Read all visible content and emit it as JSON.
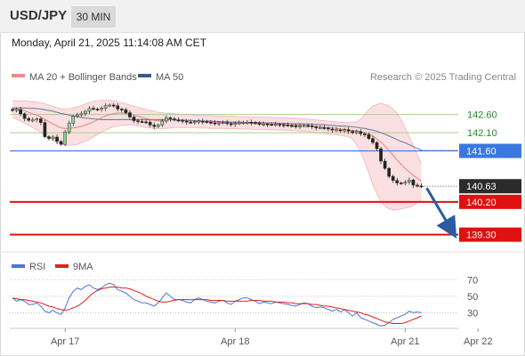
{
  "header": {
    "symbol": "USD/JPY",
    "timeframe": "30 MIN"
  },
  "datetime": "Monday, April 21, 2025 11:14:08 AM CET",
  "legend": [
    {
      "label": "MA 20 + Bollinger Bands",
      "color": "#f08a8a"
    },
    {
      "label": "MA 50",
      "color": "#3a5a8c"
    }
  ],
  "credit": "Research © 2025 Trading Central",
  "rsi_legend": [
    {
      "label": "RSI",
      "color": "#4f74d6"
    },
    {
      "label": "9MA",
      "color": "#e02020"
    }
  ],
  "chart_data": [
    {
      "type": "candlestick",
      "title": "USD/JPY",
      "ylim": [
        138.9,
        143.3
      ],
      "x_ticks": [
        {
          "label": "Apr 17",
          "i": 13
        },
        {
          "label": "Apr 18",
          "i": 55
        },
        {
          "label": "Apr 21",
          "i": 97
        },
        {
          "label": "Apr 22",
          "i": 115
        }
      ],
      "levels": [
        {
          "value": 142.6,
          "label": "142.60",
          "kind": "resistance",
          "color": "#a8d088",
          "text_color": "#2a8a2a"
        },
        {
          "value": 142.1,
          "label": "142.10",
          "kind": "resistance",
          "color": "#a8d088",
          "text_color": "#2a8a2a"
        },
        {
          "value": 141.6,
          "label": "141.60",
          "kind": "pivot",
          "color": "#3a78e0"
        },
        {
          "value": 140.63,
          "label": "140.63",
          "kind": "last-price",
          "color": "#222222"
        },
        {
          "value": 140.2,
          "label": "140.20",
          "kind": "support",
          "color": "#e01010"
        },
        {
          "value": 139.3,
          "label": "139.30",
          "kind": "support",
          "color": "#e01010"
        }
      ],
      "close": [
        142.71,
        142.74,
        142.62,
        142.49,
        142.44,
        142.45,
        142.48,
        142.38,
        141.99,
        141.94,
        141.98,
        141.86,
        141.78,
        142.12,
        142.36,
        142.55,
        142.59,
        142.62,
        142.69,
        142.77,
        142.75,
        142.74,
        142.77,
        142.84,
        142.86,
        142.84,
        142.75,
        142.73,
        142.65,
        142.53,
        142.43,
        142.41,
        142.4,
        142.39,
        142.31,
        142.27,
        142.31,
        142.42,
        142.51,
        142.48,
        142.45,
        142.44,
        142.42,
        142.39,
        142.38,
        142.4,
        142.42,
        142.41,
        142.39,
        142.37,
        142.36,
        142.37,
        142.38,
        142.35,
        142.33,
        142.36,
        142.37,
        142.39,
        142.39,
        142.38,
        142.36,
        142.33,
        142.34,
        142.33,
        142.32,
        142.33,
        142.32,
        142.31,
        142.3,
        142.29,
        142.28,
        142.29,
        142.3,
        142.29,
        142.26,
        142.24,
        142.24,
        142.23,
        142.2,
        142.17,
        142.18,
        142.16,
        142.18,
        142.14,
        142.1,
        142.13,
        142.07,
        142.05,
        141.94,
        141.83,
        141.66,
        141.32,
        141.12,
        140.9,
        140.79,
        140.72,
        140.71,
        140.74,
        140.8,
        140.66,
        140.64,
        140.63
      ],
      "ma20": [
        142.76,
        142.75,
        142.73,
        142.7,
        142.66,
        142.62,
        142.58,
        142.53,
        142.47,
        142.4,
        142.34,
        142.28,
        142.23,
        142.22,
        142.22,
        142.23,
        142.25,
        142.27,
        142.31,
        142.35,
        142.4,
        142.46,
        142.51,
        142.56,
        142.6,
        142.62,
        142.64,
        142.64,
        142.63,
        142.61,
        142.58,
        142.55,
        142.52,
        142.49,
        142.46,
        142.44,
        142.43,
        142.43,
        142.44,
        142.45,
        142.45,
        142.45,
        142.44,
        142.43,
        142.42,
        142.41,
        142.41,
        142.4,
        142.4,
        142.39,
        142.39,
        142.38,
        142.38,
        142.37,
        142.37,
        142.37,
        142.36,
        142.36,
        142.36,
        142.36,
        142.35,
        142.35,
        142.35,
        142.35,
        142.34,
        142.34,
        142.34,
        142.33,
        142.32,
        142.32,
        142.31,
        142.31,
        142.3,
        142.29,
        142.28,
        142.27,
        142.26,
        142.25,
        142.24,
        142.23,
        142.22,
        142.2,
        142.19,
        142.18,
        142.16,
        142.15,
        142.13,
        142.11,
        142.07,
        142.01,
        141.93,
        141.84,
        141.73,
        141.61,
        141.48,
        141.35,
        141.23,
        141.12,
        141.02,
        140.93,
        140.85,
        140.77
      ],
      "upper_band": [
        142.98,
        142.98,
        142.97,
        142.97,
        142.96,
        142.95,
        142.94,
        142.92,
        142.89,
        142.86,
        142.82,
        142.79,
        142.76,
        142.75,
        142.76,
        142.78,
        142.81,
        142.85,
        142.89,
        142.93,
        142.96,
        142.98,
        142.99,
        142.99,
        142.99,
        142.98,
        142.95,
        142.92,
        142.89,
        142.86,
        142.83,
        142.8,
        142.77,
        142.74,
        142.71,
        142.69,
        142.66,
        142.65,
        142.64,
        142.63,
        142.62,
        142.61,
        142.6,
        142.59,
        142.59,
        142.58,
        142.58,
        142.57,
        142.57,
        142.57,
        142.56,
        142.56,
        142.56,
        142.55,
        142.55,
        142.55,
        142.54,
        142.54,
        142.54,
        142.54,
        142.53,
        142.53,
        142.53,
        142.53,
        142.52,
        142.52,
        142.52,
        142.51,
        142.51,
        142.5,
        142.5,
        142.49,
        142.48,
        142.47,
        142.46,
        142.45,
        142.44,
        142.43,
        142.42,
        142.41,
        142.4,
        142.39,
        142.38,
        142.38,
        142.38,
        142.4,
        142.47,
        142.6,
        142.73,
        142.83,
        142.88,
        142.9,
        142.88,
        142.83,
        142.75,
        142.63,
        142.45,
        142.23,
        141.99,
        141.74,
        141.49,
        141.26
      ],
      "lower_band": [
        142.52,
        142.47,
        142.42,
        142.36,
        142.3,
        142.24,
        142.18,
        142.11,
        142.03,
        141.96,
        141.89,
        141.83,
        141.79,
        141.76,
        141.75,
        141.76,
        141.78,
        141.82,
        141.87,
        141.93,
        141.99,
        142.05,
        142.11,
        142.17,
        142.22,
        142.26,
        142.28,
        142.3,
        142.31,
        142.31,
        142.3,
        142.28,
        142.26,
        142.24,
        142.23,
        142.22,
        142.21,
        142.21,
        142.22,
        142.23,
        142.24,
        142.24,
        142.24,
        142.24,
        142.24,
        142.24,
        142.23,
        142.23,
        142.23,
        142.22,
        142.22,
        142.22,
        142.22,
        142.21,
        142.21,
        142.21,
        142.2,
        142.2,
        142.2,
        142.2,
        142.19,
        142.19,
        142.19,
        142.18,
        142.18,
        142.18,
        142.17,
        142.17,
        142.16,
        142.16,
        142.15,
        142.14,
        142.14,
        142.13,
        142.12,
        142.1,
        142.09,
        142.08,
        142.06,
        142.05,
        142.04,
        142.03,
        142.01,
        141.99,
        141.92,
        141.78,
        141.58,
        141.31,
        141.0,
        140.69,
        140.42,
        140.22,
        140.09,
        140.01,
        139.98,
        139.98,
        140.01,
        140.03,
        140.05,
        140.1,
        140.18,
        140.25
      ],
      "ma50": [
        142.78,
        142.78,
        142.78,
        142.78,
        142.77,
        142.77,
        142.76,
        142.75,
        142.73,
        142.71,
        142.69,
        142.66,
        142.63,
        142.61,
        142.58,
        142.56,
        142.54,
        142.52,
        142.5,
        142.49,
        142.48,
        142.47,
        142.46,
        142.46,
        142.46,
        142.46,
        142.46,
        142.46,
        142.46,
        142.46,
        142.46,
        142.46,
        142.46,
        142.46,
        142.46,
        142.46,
        142.46,
        142.46,
        142.46,
        142.46,
        142.45,
        142.45,
        142.45,
        142.44,
        142.44,
        142.43,
        142.43,
        142.42,
        142.42,
        142.42,
        142.41,
        142.41,
        142.4,
        142.4,
        142.39,
        142.39,
        142.39,
        142.38,
        142.38,
        142.38,
        142.38,
        142.38,
        142.37,
        142.37,
        142.37,
        142.37,
        142.36,
        142.36,
        142.36,
        142.35,
        142.35,
        142.35,
        142.34,
        142.34,
        142.33,
        142.33,
        142.32,
        142.32,
        142.31,
        142.3,
        142.29,
        142.28,
        142.28,
        142.27,
        142.26,
        142.25,
        142.23,
        142.22,
        142.19,
        142.17,
        142.14,
        142.1,
        142.06,
        142.01,
        141.96,
        141.91,
        141.86,
        141.82,
        141.77,
        141.72,
        141.67,
        141.62
      ]
    },
    {
      "type": "line",
      "title": "RSI",
      "ylim": [
        10,
        80
      ],
      "y_ticks": [
        70,
        50,
        30
      ],
      "series": [
        {
          "name": "RSI",
          "color": "#4f74d6",
          "values": [
            48,
            44,
            46,
            44,
            40,
            40,
            42,
            38,
            32,
            30,
            33,
            30,
            28,
            36,
            48,
            56,
            60,
            58,
            62,
            64,
            60,
            58,
            60,
            64,
            66,
            64,
            58,
            56,
            54,
            50,
            46,
            44,
            42,
            42,
            40,
            38,
            42,
            48,
            54,
            50,
            46,
            46,
            45,
            43,
            42,
            46,
            48,
            46,
            44,
            43,
            42,
            44,
            45,
            42,
            40,
            44,
            46,
            48,
            48,
            46,
            44,
            41,
            43,
            42,
            41,
            43,
            42,
            41,
            40,
            39,
            38,
            40,
            42,
            41,
            38,
            36,
            37,
            36,
            34,
            32,
            34,
            31,
            34,
            30,
            26,
            30,
            24,
            22,
            20,
            18,
            16,
            14,
            15,
            18,
            22,
            24,
            26,
            28,
            32,
            30,
            31,
            30
          ]
        },
        {
          "name": "9MA",
          "color": "#e02020",
          "values": [
            48,
            47,
            46,
            46,
            45,
            44,
            43,
            42,
            40,
            38,
            37,
            35,
            34,
            33,
            34,
            36,
            38,
            41,
            45,
            50,
            54,
            57,
            59,
            60,
            61,
            61,
            61,
            60,
            60,
            59,
            57,
            55,
            53,
            50,
            48,
            46,
            44,
            43,
            43,
            44,
            45,
            46,
            46,
            46,
            46,
            46,
            46,
            46,
            46,
            45,
            45,
            45,
            45,
            44,
            44,
            44,
            44,
            44,
            44,
            45,
            45,
            45,
            44,
            44,
            44,
            43,
            43,
            43,
            42,
            42,
            41,
            41,
            41,
            41,
            40,
            40,
            39,
            38,
            38,
            37,
            36,
            35,
            34,
            33,
            32,
            31,
            30,
            28,
            27,
            25,
            23,
            21,
            19,
            18,
            17,
            17,
            17,
            18,
            20,
            22,
            24,
            26
          ]
        }
      ]
    }
  ]
}
